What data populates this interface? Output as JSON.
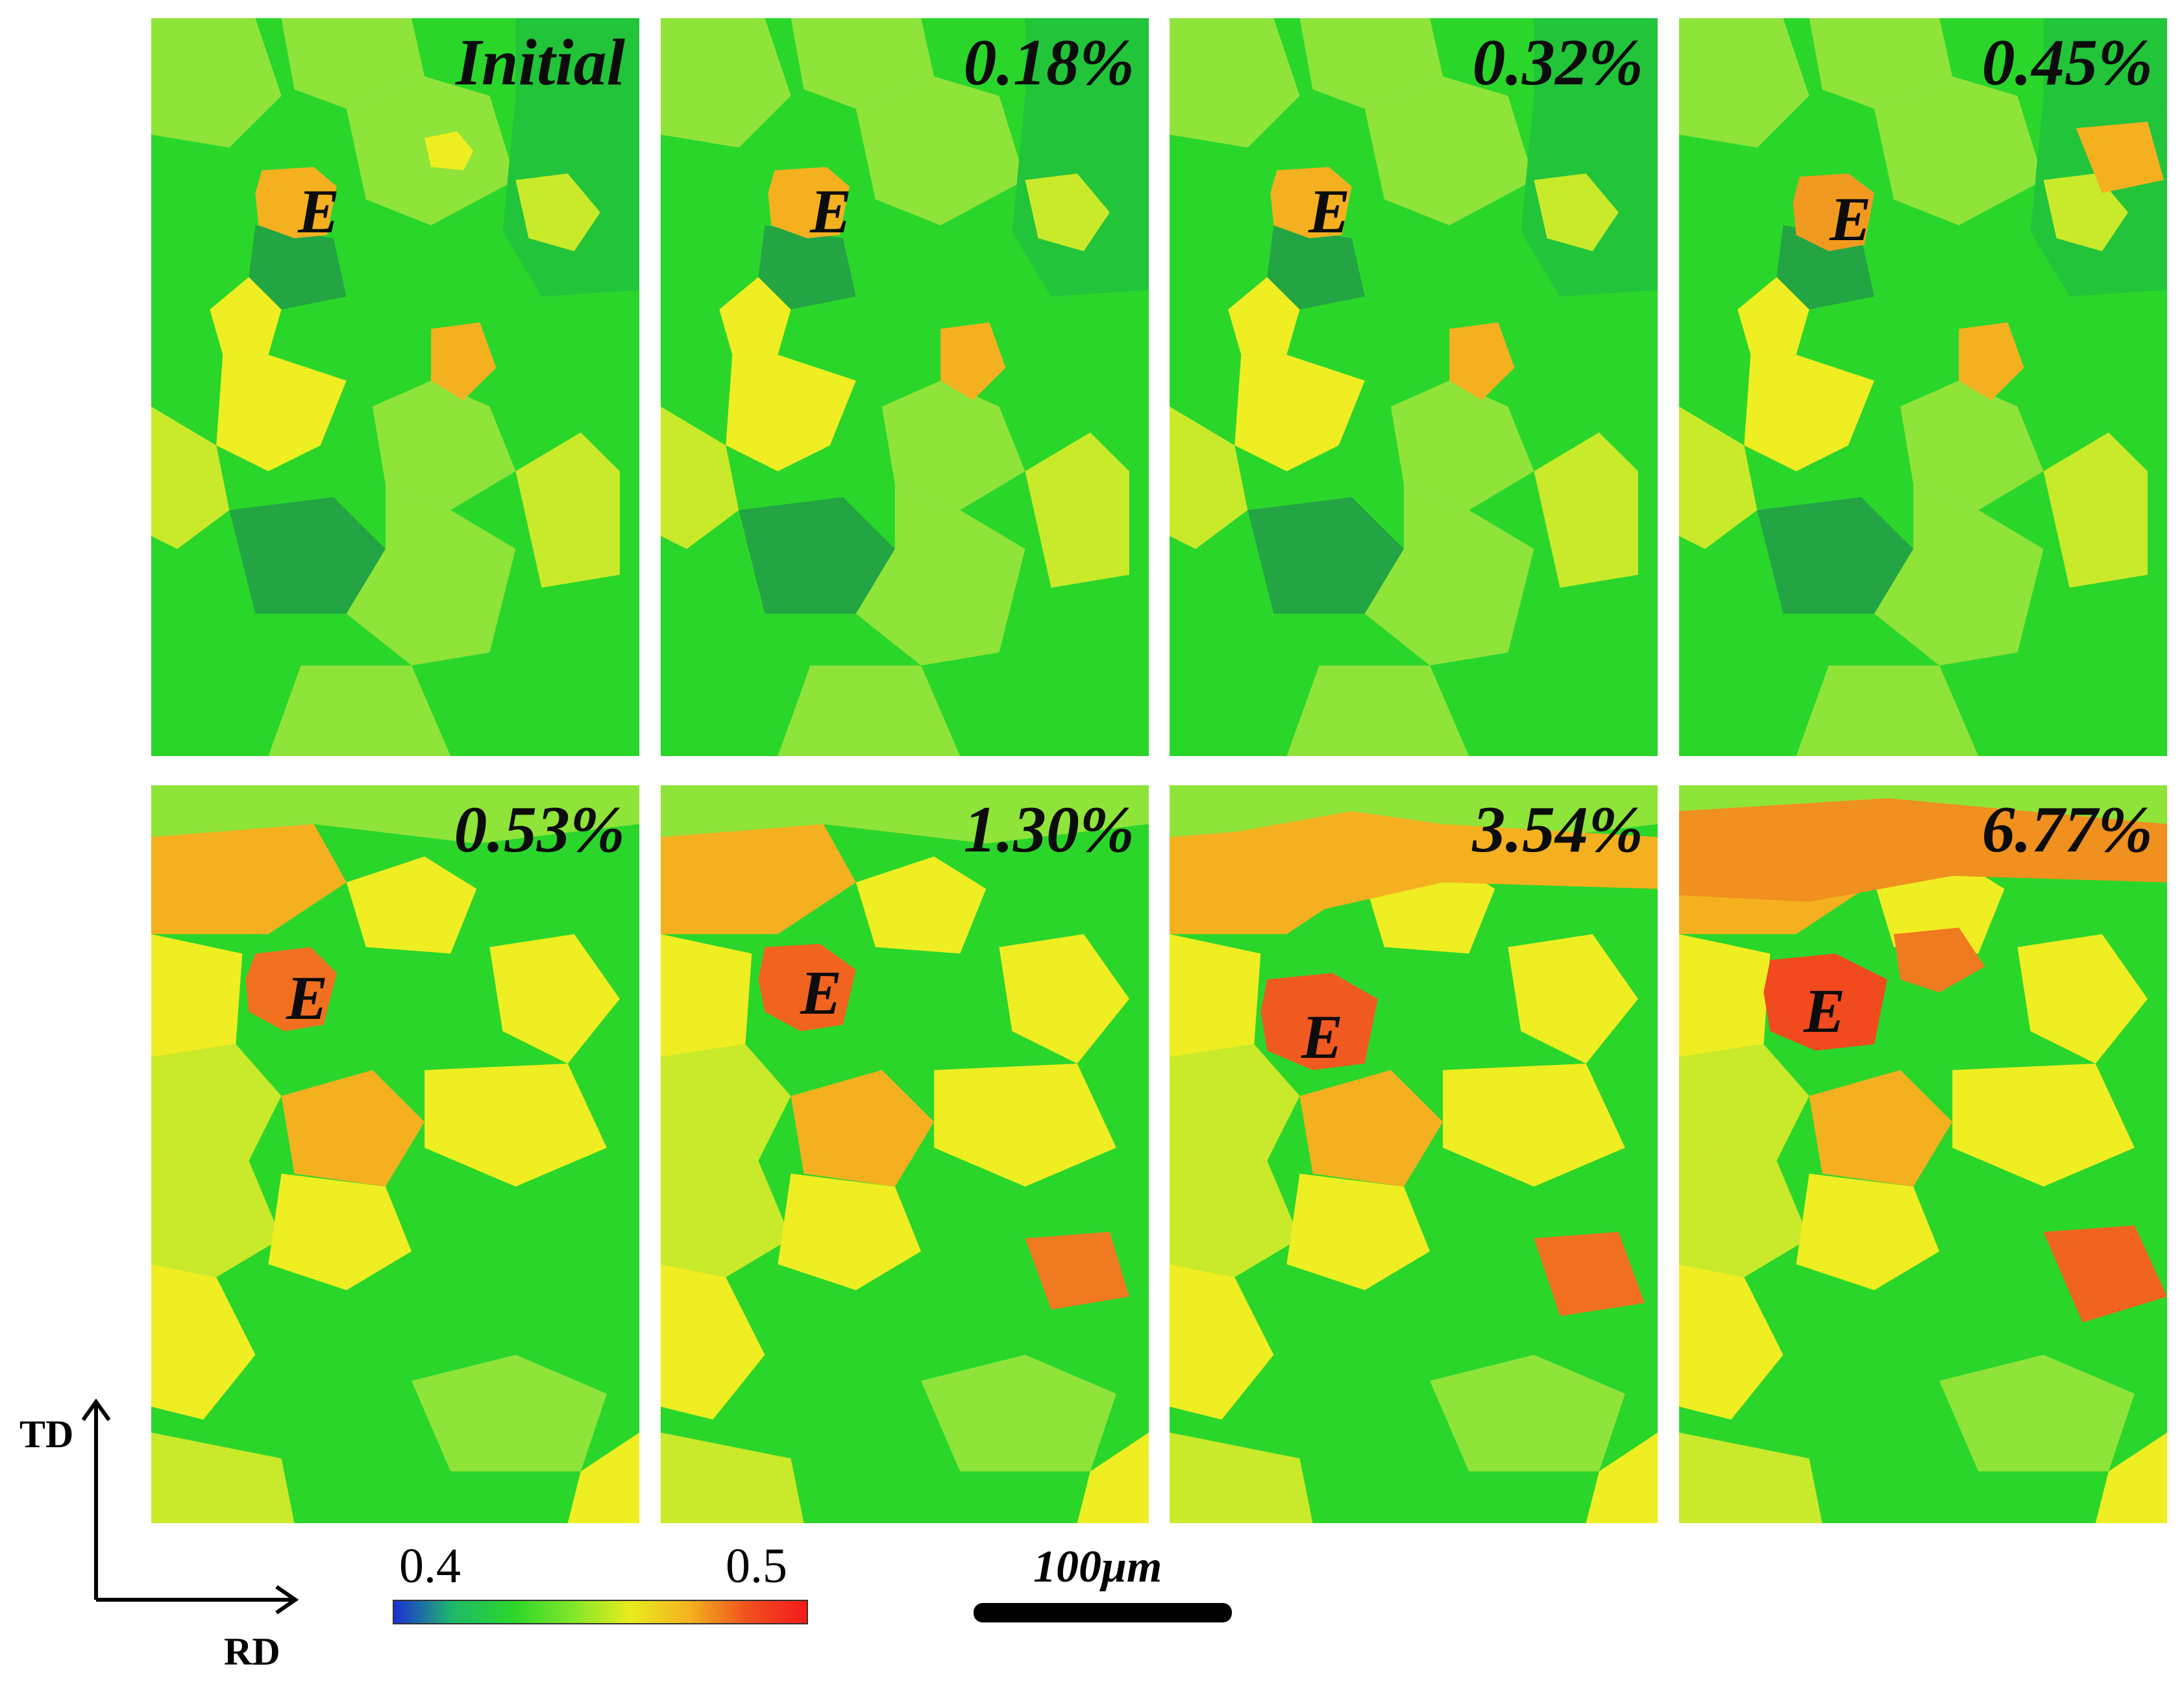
{
  "figure": {
    "panels": [
      {
        "strain": "Initial",
        "grain_label": "E"
      },
      {
        "strain": "0.18%",
        "grain_label": "E"
      },
      {
        "strain": "0.32%",
        "grain_label": "E"
      },
      {
        "strain": "0.45%",
        "grain_label": "E"
      },
      {
        "strain": "0.53%",
        "grain_label": "E"
      },
      {
        "strain": "1.30%",
        "grain_label": "E"
      },
      {
        "strain": "3.54%",
        "grain_label": "E"
      },
      {
        "strain": "6.77%",
        "grain_label": "E"
      }
    ],
    "axes": {
      "vertical": "TD",
      "horizontal": "RD"
    },
    "colorbar": {
      "min_label": "0.4",
      "max_label": "0.5",
      "gradient_colors": [
        "#1c2fd6",
        "#1fb96a",
        "#2bd62b",
        "#7ee62a",
        "#e8ec1e",
        "#f3b31e",
        "#f0501e",
        "#f41a1a"
      ]
    },
    "scale_bar": {
      "label": "100μm"
    },
    "palette": {
      "green": "#2bd62b",
      "light_green": "#8fe43a",
      "yellow_green": "#c9ea2a",
      "yellow": "#eeee22",
      "orange": "#f5b020",
      "red_orange": "#f06420",
      "dark_green": "#22a542",
      "blue_green": "#2a8a80"
    }
  }
}
